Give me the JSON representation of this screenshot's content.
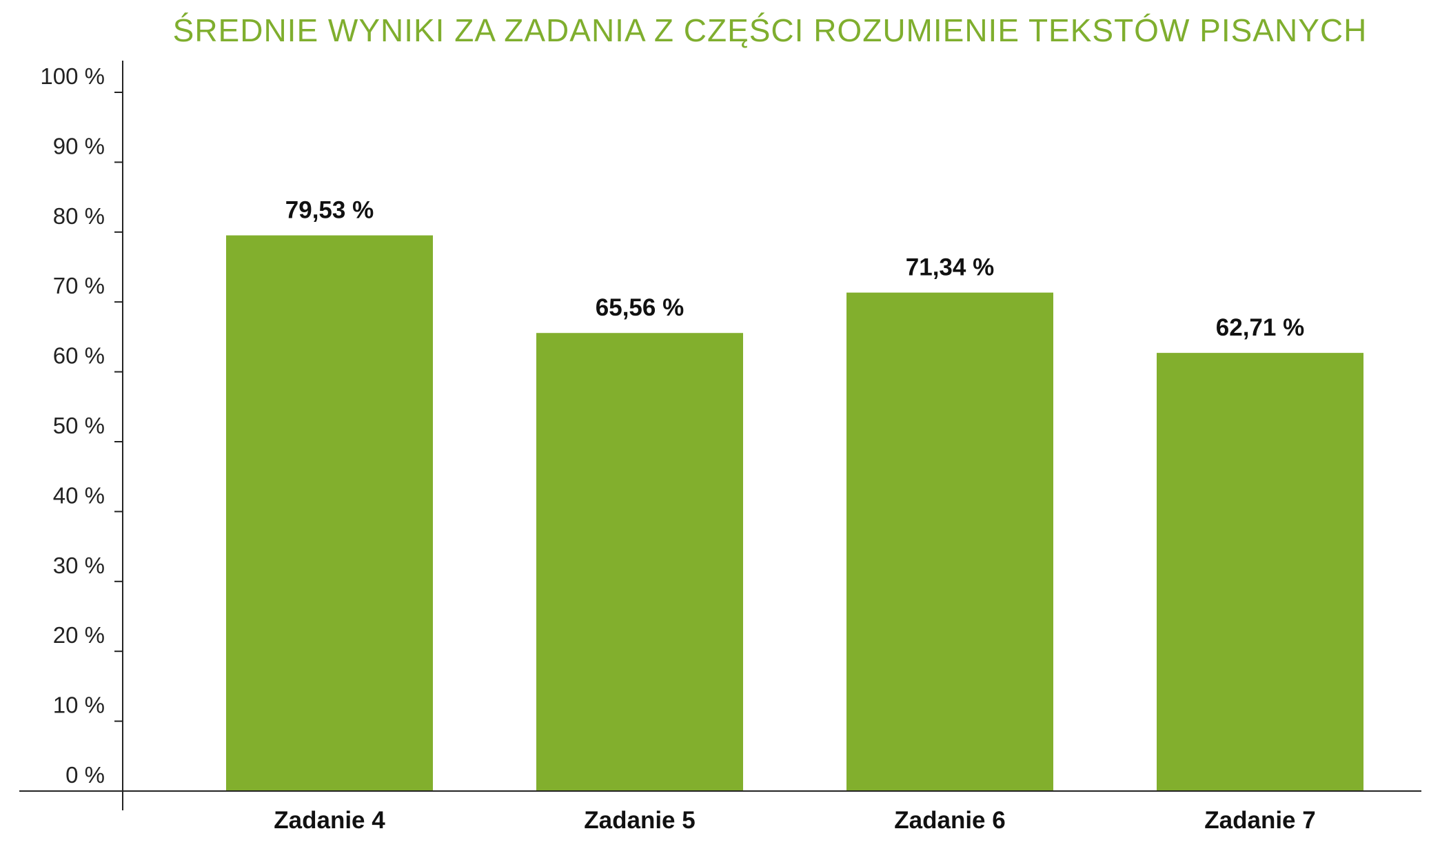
{
  "chart_data": {
    "type": "bar",
    "title": "ŚREDNIE WYNIKI ZA ZADANIA Z CZĘŚCI ROZUMIENIE TEKSTÓW PISANYCH",
    "xlabel": "",
    "ylabel": "",
    "categories": [
      "Zadanie 4",
      "Zadanie 5",
      "Zadanie 6",
      "Zadanie 7"
    ],
    "values": [
      79.53,
      65.56,
      71.34,
      62.71
    ],
    "value_labels": [
      "79,53 %",
      "65,56 %",
      "71,34 %",
      "62,71 %"
    ],
    "ylim": [
      0,
      100
    ],
    "yticks": [
      0,
      10,
      20,
      30,
      40,
      50,
      60,
      70,
      80,
      90,
      100
    ],
    "ytick_labels": [
      "0 %",
      "10 %",
      "20 %",
      "30 %",
      "40 %",
      "50 %",
      "60 %",
      "70 %",
      "80 %",
      "90 %",
      "100 %"
    ],
    "grid": false,
    "legend": "none",
    "colors": {
      "bar": "#82af2d",
      "title": "#7fae2e",
      "axis": "#222222"
    }
  }
}
